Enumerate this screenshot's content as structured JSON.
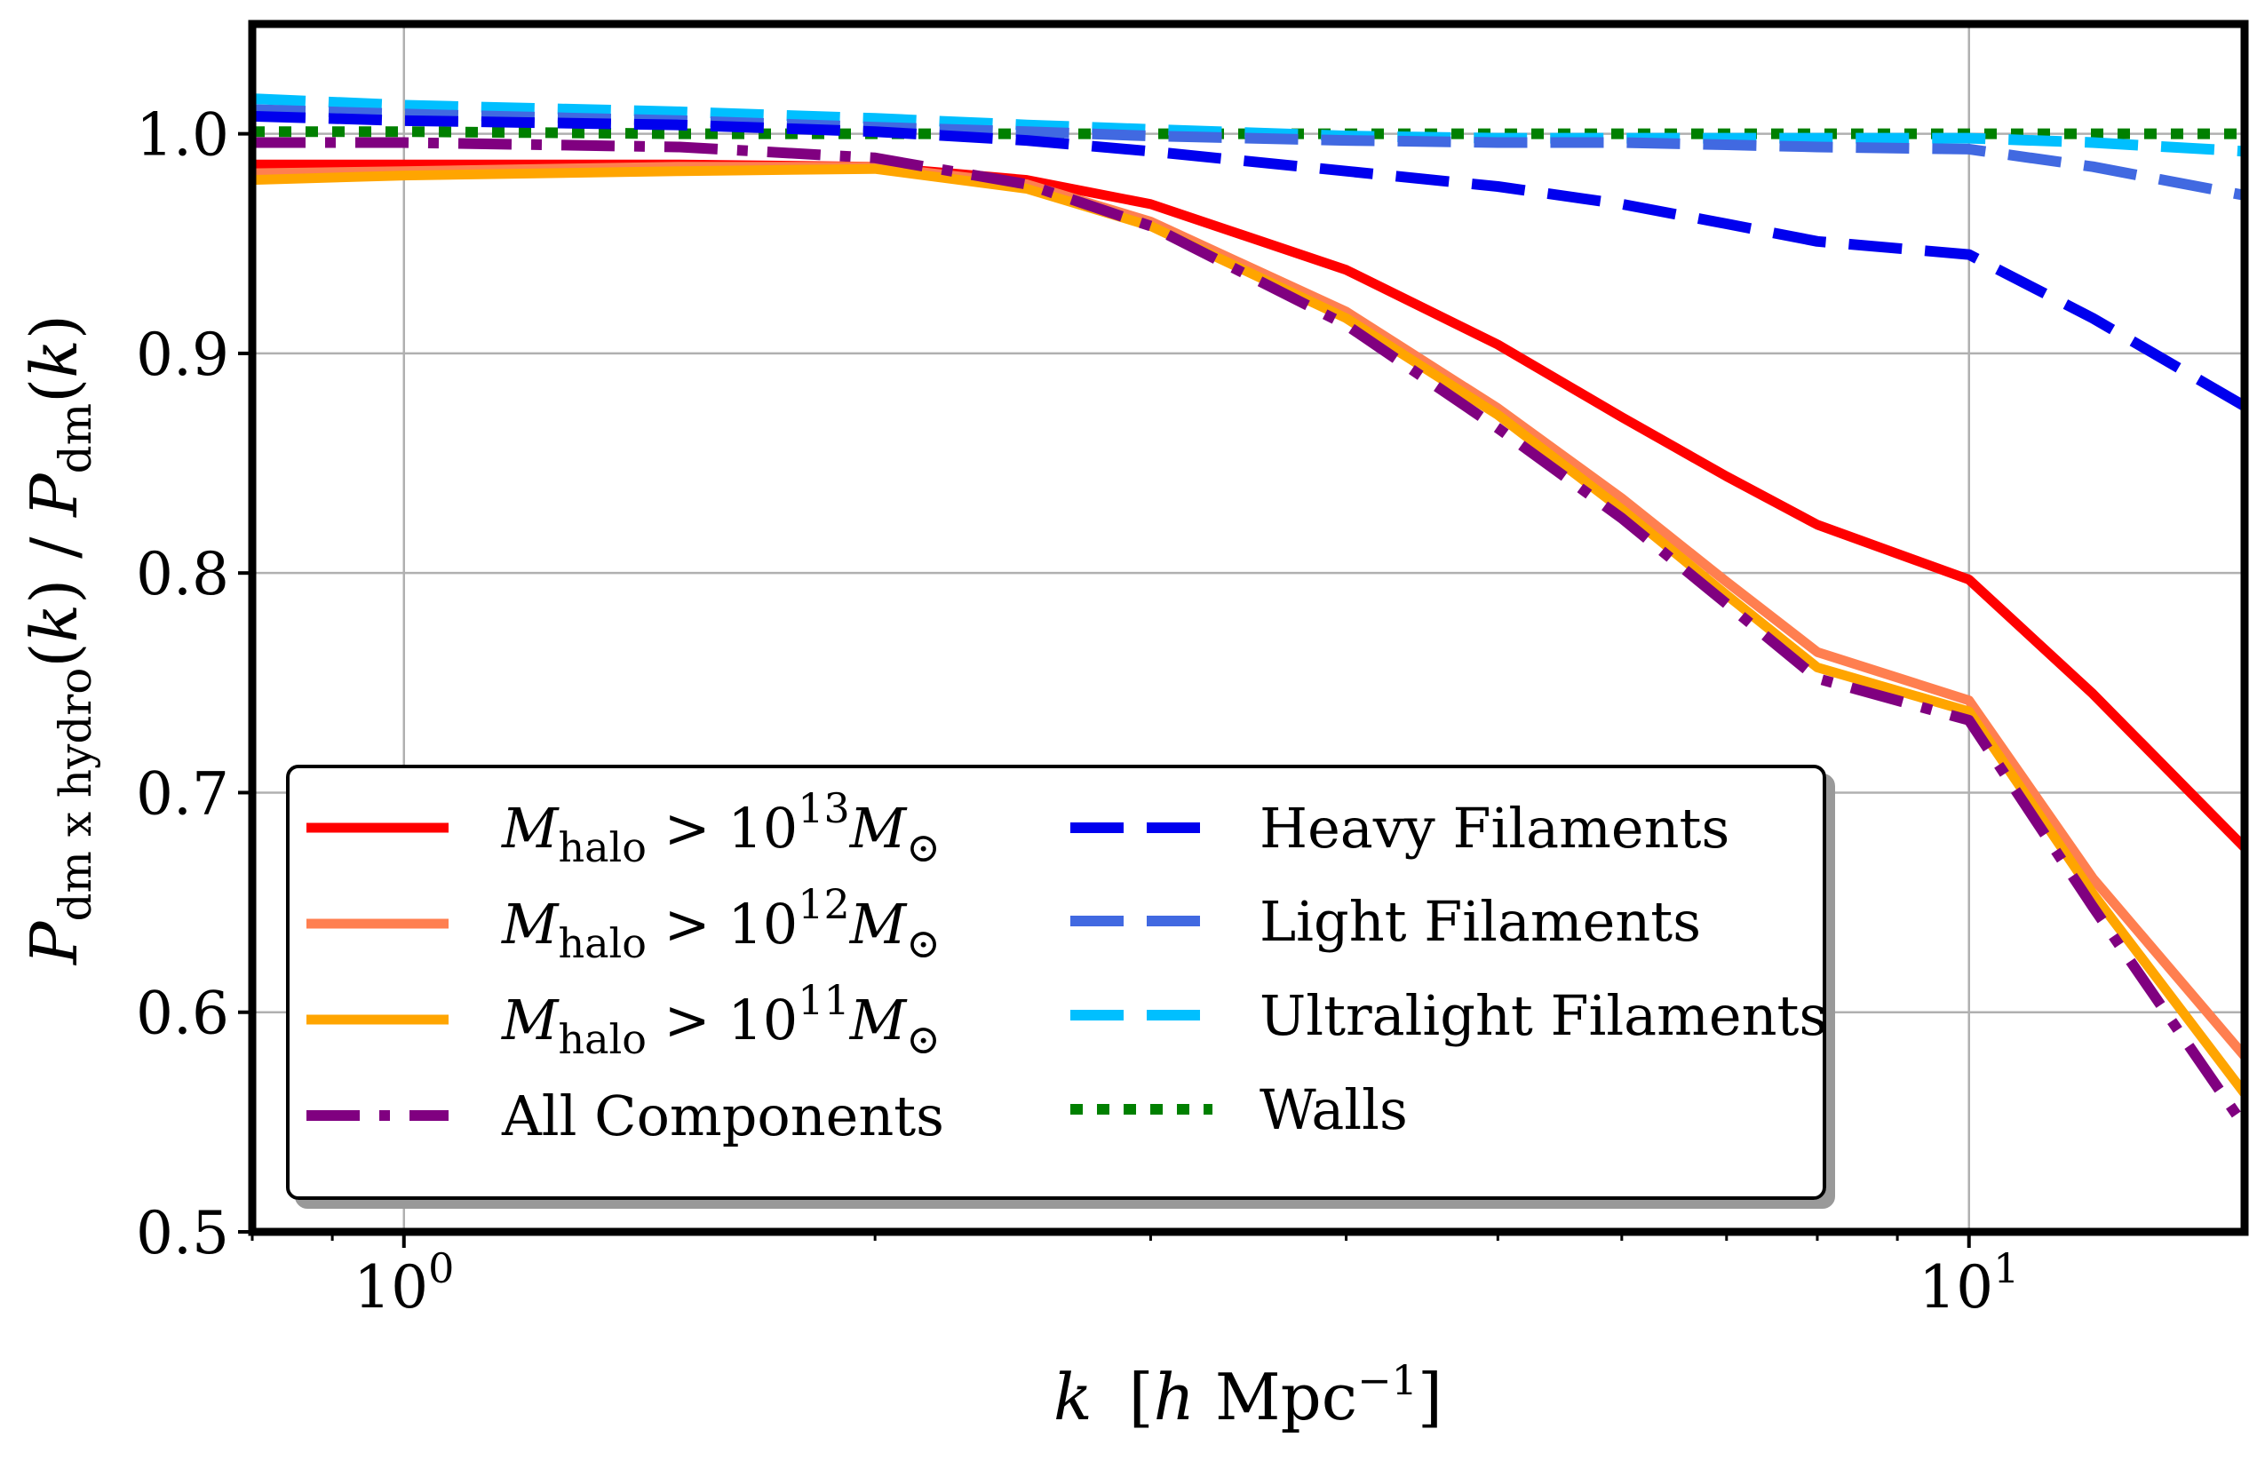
{
  "chart_data": {
    "type": "line",
    "xscale": "log",
    "xlim": [
      0.8,
      15
    ],
    "ylim": [
      0.5,
      1.05
    ],
    "grid": true,
    "xlabel": "k [h Mpc⁻¹]",
    "ylabel": "P_dm x hydro(k) / P_dm(k)",
    "x_ticks": [
      {
        "value": 1,
        "base": "10",
        "exp": "0"
      },
      {
        "value": 10,
        "base": "10",
        "exp": "1"
      }
    ],
    "y_ticks": [
      "0.5",
      "0.6",
      "0.7",
      "0.8",
      "0.9",
      "1.0"
    ],
    "legend_position": "lower-left",
    "series": [
      {
        "name": "M_halo > 10^13 M_⊙",
        "color": "#ff0000",
        "style": "solid",
        "x": [
          0.8,
          1.0,
          1.5,
          2.0,
          2.5,
          3.0,
          4.0,
          5.0,
          6.0,
          7.0,
          8.0,
          10.0,
          12.0,
          15.0
        ],
        "y": [
          0.986,
          0.986,
          0.986,
          0.985,
          0.979,
          0.968,
          0.938,
          0.904,
          0.871,
          0.844,
          0.822,
          0.797,
          0.745,
          0.675
        ]
      },
      {
        "name": "M_halo > 10^12 M_⊙",
        "color": "#ff7f50",
        "style": "solid",
        "x": [
          0.8,
          1.0,
          1.5,
          2.0,
          2.5,
          3.0,
          4.0,
          5.0,
          6.0,
          7.0,
          8.0,
          10.0,
          12.0,
          15.0
        ],
        "y": [
          0.982,
          0.983,
          0.985,
          0.985,
          0.977,
          0.96,
          0.919,
          0.875,
          0.834,
          0.796,
          0.764,
          0.742,
          0.661,
          0.58
        ]
      },
      {
        "name": "M_halo > 10^11 M_⊙",
        "color": "#ffa500",
        "style": "solid",
        "x": [
          0.8,
          1.0,
          1.5,
          2.0,
          2.5,
          3.0,
          4.0,
          5.0,
          6.0,
          7.0,
          8.0,
          10.0,
          12.0,
          15.0
        ],
        "y": [
          0.979,
          0.981,
          0.983,
          0.984,
          0.975,
          0.958,
          0.916,
          0.872,
          0.829,
          0.79,
          0.757,
          0.737,
          0.654,
          0.563
        ]
      },
      {
        "name": "All Components",
        "color": "#800080",
        "style": "dashdot",
        "x": [
          0.8,
          1.0,
          1.5,
          2.0,
          2.5,
          3.0,
          4.0,
          5.0,
          6.0,
          7.0,
          8.0,
          10.0,
          12.0,
          15.0
        ],
        "y": [
          0.996,
          0.996,
          0.994,
          0.989,
          0.977,
          0.958,
          0.913,
          0.866,
          0.825,
          0.786,
          0.752,
          0.733,
          0.648,
          0.548
        ]
      },
      {
        "name": "Heavy Filaments",
        "color": "#0000ee",
        "style": "dashed",
        "x": [
          0.8,
          1.0,
          1.5,
          2.0,
          2.5,
          3.0,
          4.0,
          5.0,
          6.0,
          7.0,
          8.0,
          10.0,
          12.0,
          15.0
        ],
        "y": [
          1.008,
          1.006,
          1.004,
          1.001,
          0.997,
          0.992,
          0.983,
          0.976,
          0.968,
          0.959,
          0.951,
          0.945,
          0.916,
          0.876
        ]
      },
      {
        "name": "Light Filaments",
        "color": "#4169e1",
        "style": "dashed",
        "x": [
          0.8,
          1.0,
          1.5,
          2.0,
          2.5,
          3.0,
          4.0,
          5.0,
          6.0,
          7.0,
          8.0,
          10.0,
          12.0,
          15.0
        ],
        "y": [
          1.011,
          1.009,
          1.006,
          1.003,
          1.001,
          0.999,
          0.997,
          0.996,
          0.996,
          0.995,
          0.994,
          0.993,
          0.985,
          0.972
        ]
      },
      {
        "name": "Ultralight Filaments",
        "color": "#00bfff",
        "style": "dashed",
        "x": [
          0.8,
          1.0,
          1.5,
          2.0,
          2.5,
          3.0,
          4.0,
          5.0,
          6.0,
          7.0,
          8.0,
          10.0,
          12.0,
          15.0
        ],
        "y": [
          1.016,
          1.013,
          1.01,
          1.007,
          1.004,
          1.002,
          0.999,
          0.998,
          0.998,
          0.998,
          0.998,
          0.998,
          0.996,
          0.992
        ]
      },
      {
        "name": "Walls",
        "color": "#008000",
        "style": "dotted",
        "x": [
          0.8,
          1.0,
          1.5,
          2.0,
          3.0,
          5.0,
          8.0,
          10.0,
          15.0
        ],
        "y": [
          1.001,
          1.001,
          1.0,
          1.0,
          1.0,
          1.0,
          1.0,
          1.0,
          1.0
        ]
      }
    ],
    "legend": {
      "col1": [
        {
          "series": 0,
          "kind": "mass",
          "exp": "13"
        },
        {
          "series": 1,
          "kind": "mass",
          "exp": "12"
        },
        {
          "series": 2,
          "kind": "mass",
          "exp": "11"
        },
        {
          "series": 3,
          "kind": "text",
          "label": "All Components"
        }
      ],
      "col2": [
        {
          "series": 4,
          "label": "Heavy Filaments"
        },
        {
          "series": 5,
          "label": "Light Filaments"
        },
        {
          "series": 6,
          "label": "Ultralight Filaments"
        },
        {
          "series": 7,
          "label": "Walls"
        }
      ],
      "mass_symbol": "M",
      "mass_sub": "halo",
      "mass_op": ">",
      "mass_base": "10",
      "sun_symbol": "⊙"
    },
    "ylabel_parts": {
      "P": "P",
      "sub1": "dm x hydro",
      "k_open": "(",
      "k": "k",
      "k_close": ")",
      "slash": " / ",
      "sub2": "dm"
    },
    "xlabel_parts": {
      "k": "k",
      "bracket_open": "[",
      "h": "h",
      "mpc": " Mpc",
      "exp": "−1",
      "bracket_close": "]"
    }
  }
}
